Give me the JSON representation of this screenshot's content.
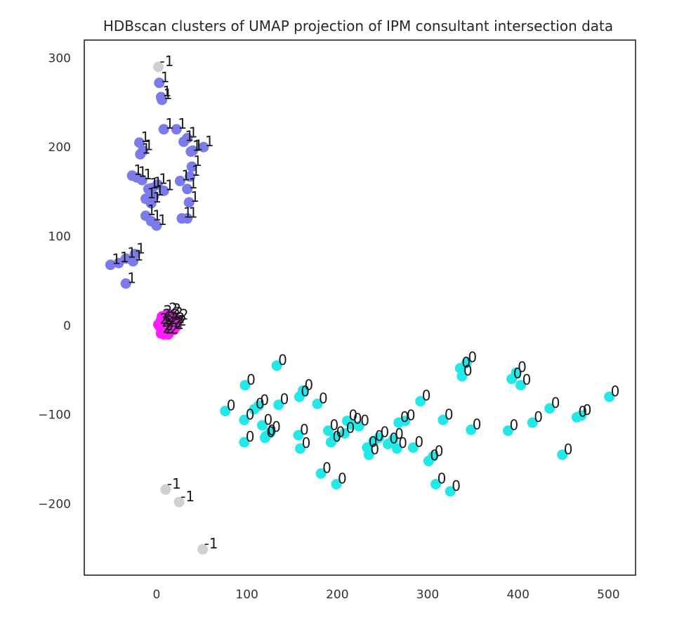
{
  "chart_data": {
    "type": "scatter",
    "title": "HDBscan clusters of UMAP projection of IPM consultant intersection data",
    "xlabel": "",
    "ylabel": "",
    "xlim": [
      -80,
      530
    ],
    "ylim": [
      -280,
      320
    ],
    "xticks": [
      0,
      100,
      200,
      300,
      400,
      500
    ],
    "yticks": [
      -200,
      -100,
      0,
      100,
      200,
      300
    ],
    "xtick_labels": [
      "0",
      "100",
      "200",
      "300",
      "400",
      "500"
    ],
    "ytick_labels": [
      "−200",
      "−100",
      "0",
      "100",
      "200",
      "300"
    ],
    "grid": false,
    "legend": "none",
    "cluster_colors": {
      "-1": "#d0d0d0",
      "0": "#22e8e8",
      "1": "#7b7beb",
      "2": "#ff1aff"
    },
    "series": [
      {
        "label": "-1",
        "points": [
          [
            2,
            290
          ],
          [
            10,
            -184
          ],
          [
            25,
            -198
          ],
          [
            51,
            -251
          ]
        ]
      },
      {
        "label": "0",
        "points": [
          [
            133,
            -45
          ],
          [
            98,
            -67
          ],
          [
            76,
            -96
          ],
          [
            97,
            -106
          ],
          [
            108,
            -94
          ],
          [
            113,
            -90
          ],
          [
            117,
            -112
          ],
          [
            120,
            -126
          ],
          [
            121,
            -124
          ],
          [
            126,
            -120
          ],
          [
            97,
            -131
          ],
          [
            135,
            -89
          ],
          [
            158,
            -80
          ],
          [
            162,
            -73
          ],
          [
            178,
            -88
          ],
          [
            157,
            -123
          ],
          [
            159,
            -138
          ],
          [
            190,
            -118
          ],
          [
            193,
            -131
          ],
          [
            197,
            -126
          ],
          [
            182,
            -166
          ],
          [
            199,
            -178
          ],
          [
            208,
            -121
          ],
          [
            211,
            -107
          ],
          [
            216,
            -111
          ],
          [
            224,
            -113
          ],
          [
            233,
            -137
          ],
          [
            235,
            -145
          ],
          [
            240,
            -130
          ],
          [
            246,
            -126
          ],
          [
            256,
            -133
          ],
          [
            262,
            -128
          ],
          [
            266,
            -138
          ],
          [
            268,
            -109
          ],
          [
            275,
            -107
          ],
          [
            284,
            -137
          ],
          [
            292,
            -85
          ],
          [
            301,
            -152
          ],
          [
            306,
            -147
          ],
          [
            309,
            -178
          ],
          [
            317,
            -106
          ],
          [
            325,
            -186
          ],
          [
            336,
            -48
          ],
          [
            338,
            -57
          ],
          [
            343,
            -42
          ],
          [
            348,
            -117
          ],
          [
            389,
            -118
          ],
          [
            393,
            -60
          ],
          [
            398,
            -53
          ],
          [
            403,
            -67
          ],
          [
            416,
            -109
          ],
          [
            435,
            -93
          ],
          [
            449,
            -145
          ],
          [
            465,
            -103
          ],
          [
            470,
            -101
          ],
          [
            501,
            -80
          ]
        ]
      },
      {
        "label": "1",
        "points": [
          [
            3,
            272
          ],
          [
            5,
            256
          ],
          [
            6,
            253
          ],
          [
            8,
            220
          ],
          [
            22,
            220
          ],
          [
            30,
            206
          ],
          [
            34,
            210
          ],
          [
            38,
            195
          ],
          [
            40,
            196
          ],
          [
            52,
            200
          ],
          [
            -19,
            205
          ],
          [
            -18,
            192
          ],
          [
            -15,
            196
          ],
          [
            -27,
            168
          ],
          [
            -22,
            166
          ],
          [
            -16,
            163
          ],
          [
            -12,
            142
          ],
          [
            -9,
            153
          ],
          [
            -6,
            137
          ],
          [
            -3,
            145
          ],
          [
            -5,
            154
          ],
          [
            1,
            158
          ],
          [
            8,
            151
          ],
          [
            26,
            162
          ],
          [
            34,
            153
          ],
          [
            37,
            167
          ],
          [
            39,
            178
          ],
          [
            -12,
            123
          ],
          [
            -6,
            117
          ],
          [
            0,
            112
          ],
          [
            28,
            120
          ],
          [
            34,
            120
          ],
          [
            36,
            138
          ],
          [
            -51,
            68
          ],
          [
            -42,
            70
          ],
          [
            -34,
            75
          ],
          [
            -26,
            72
          ],
          [
            -24,
            80
          ],
          [
            -34,
            47
          ]
        ]
      },
      {
        "label": "2",
        "points": [
          [
            2,
            1
          ],
          [
            4,
            -2
          ],
          [
            5,
            6
          ],
          [
            6,
            10
          ],
          [
            7,
            -6
          ],
          [
            9,
            -2
          ],
          [
            10,
            3
          ],
          [
            12,
            13
          ],
          [
            13,
            -10
          ],
          [
            14,
            1
          ],
          [
            15,
            6
          ],
          [
            17,
            -3
          ],
          [
            18,
            8
          ],
          [
            20,
            2
          ],
          [
            22,
            -1
          ],
          [
            24,
            6
          ],
          [
            5,
            -9
          ],
          [
            8,
            -10
          ],
          [
            16,
            12
          ],
          [
            19,
            -5
          ]
        ]
      }
    ]
  }
}
